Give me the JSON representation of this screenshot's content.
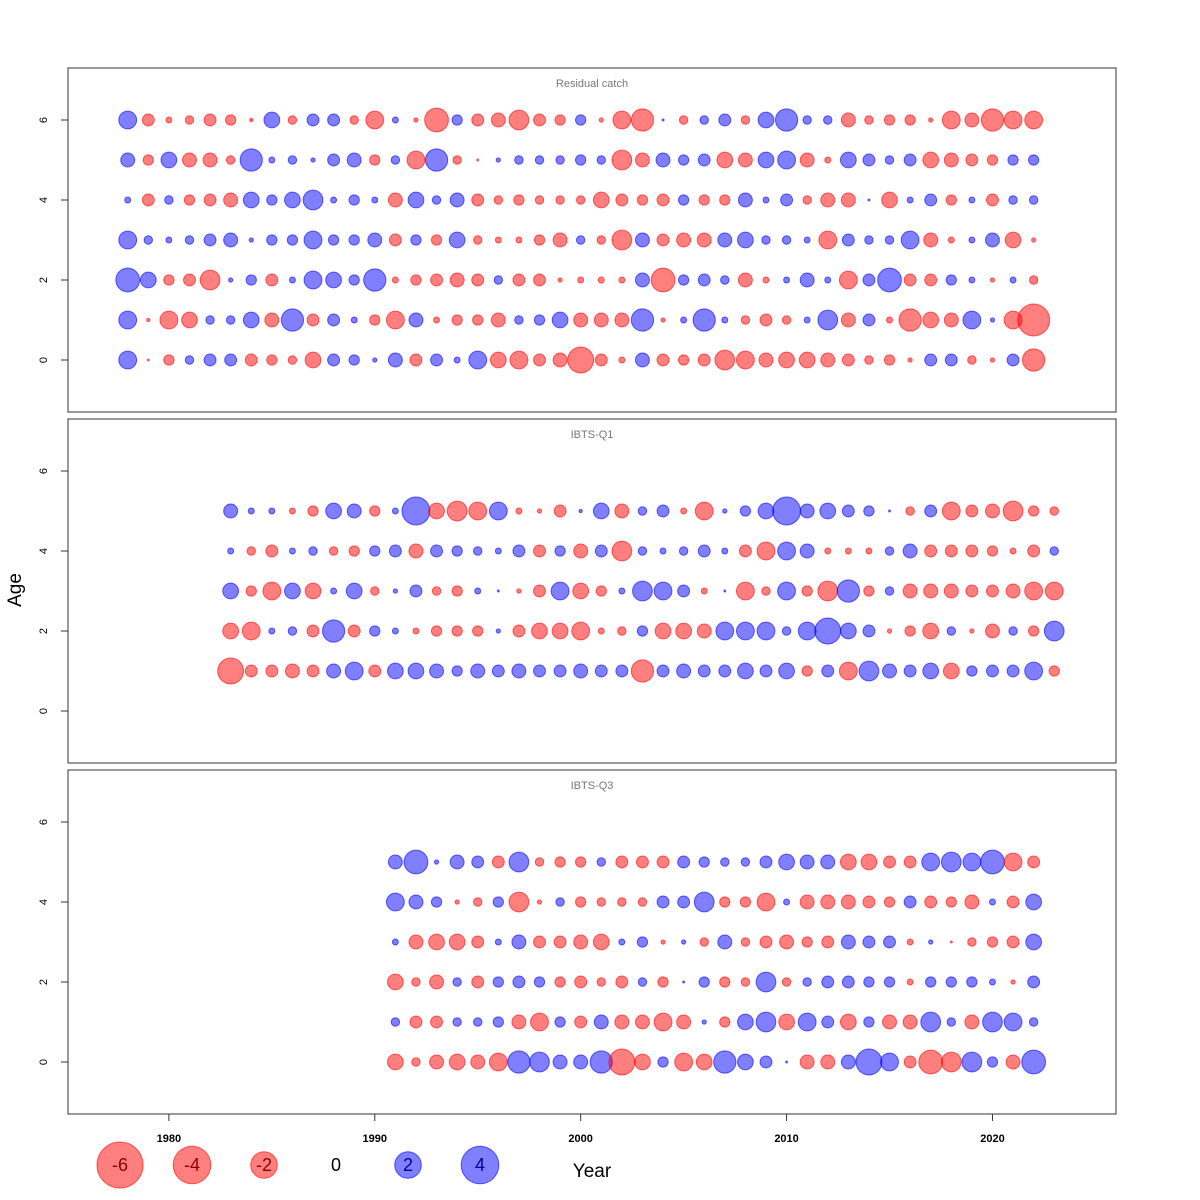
{
  "chart_data": {
    "type": "bubble",
    "xlabel": "Year",
    "ylabel": "Age",
    "xlim": [
      1975.1,
      2026
    ],
    "xticks": [
      1980,
      1990,
      2000,
      2010,
      2020
    ],
    "ylim": [
      -1.3,
      7.3
    ],
    "yticks": [
      0,
      2,
      4,
      6
    ],
    "colors": {
      "positive": "#0000ff",
      "negative": "#ff0000"
    },
    "opacity": 0.5,
    "legend": [
      -6,
      -4,
      -2,
      0,
      2,
      4
    ],
    "panels": [
      {
        "title": "Residual catch",
        "x": [
          1978,
          1979,
          1980,
          1981,
          1982,
          1983,
          1984,
          1985,
          1986,
          1987,
          1988,
          1989,
          1990,
          1991,
          1992,
          1993,
          1994,
          1995,
          1996,
          1997,
          1998,
          1999,
          2000,
          2001,
          2002,
          2003,
          2004,
          2005,
          2006,
          2007,
          2008,
          2009,
          2010,
          2011,
          2012,
          2013,
          2014,
          2015,
          2016,
          2017,
          2018,
          2019,
          2020,
          2021,
          2022
        ],
        "ages": [
          6,
          5,
          4,
          3,
          2,
          1,
          0
        ],
        "values": [
          [
            0.9,
            -0.4,
            -0.1,
            -0.2,
            -0.4,
            -0.3,
            -0.03,
            0.7,
            -0.2,
            0.4,
            0.4,
            -0.2,
            -0.9,
            0.1,
            -0.05,
            -1.6,
            0.3,
            -0.4,
            -0.55,
            -1.1,
            -0.4,
            -0.3,
            0.3,
            -0.05,
            -0.9,
            -1.4,
            0.01,
            -0.2,
            0.2,
            0.4,
            -0.2,
            0.7,
            1.4,
            0.2,
            0.2,
            -0.55,
            -0.2,
            -0.3,
            -0.3,
            -0.05,
            -0.9,
            -0.55,
            -1.4,
            -0.9,
            -0.9
          ],
          [
            0.55,
            -0.3,
            0.7,
            -0.55,
            -0.55,
            -0.2,
            1.4,
            0.1,
            0.2,
            0.05,
            0.4,
            0.55,
            -0.3,
            0.2,
            -0.9,
            1.4,
            -0.2,
            -0.01,
            0.05,
            0.2,
            0.2,
            0.2,
            0.3,
            0.2,
            -1.1,
            -0.55,
            0.55,
            0.3,
            0.4,
            -0.7,
            -0.55,
            0.7,
            0.9,
            -0.55,
            -0.1,
            0.7,
            0.4,
            0.2,
            0.4,
            -0.7,
            -0.55,
            -0.4,
            -0.3,
            0.3,
            0.3
          ],
          [
            0.1,
            -0.4,
            0.2,
            -0.3,
            -0.4,
            -0.55,
            0.7,
            0.3,
            0.7,
            1.1,
            0.1,
            0.3,
            0.1,
            -0.55,
            0.7,
            0.2,
            0.55,
            -0.4,
            -0.2,
            -0.3,
            -0.2,
            -0.2,
            -0.2,
            -0.7,
            -0.4,
            -0.3,
            -0.4,
            0.3,
            -0.3,
            -0.3,
            0.55,
            0.1,
            0.4,
            -0.2,
            -0.55,
            -0.55,
            0.01,
            -0.7,
            0.1,
            0.4,
            -0.3,
            0.1,
            -0.4,
            0.2,
            0.2
          ],
          [
            0.9,
            0.2,
            0.1,
            0.2,
            0.4,
            0.55,
            0.05,
            0.3,
            0.3,
            0.9,
            0.3,
            0.3,
            0.55,
            -0.4,
            0.3,
            -0.3,
            0.7,
            -0.2,
            -0.1,
            -0.1,
            -0.3,
            -0.55,
            0.2,
            -0.2,
            -1.1,
            0.55,
            -0.4,
            -0.55,
            -0.55,
            0.55,
            0.7,
            0.2,
            0.2,
            0.1,
            -0.9,
            0.4,
            0.2,
            0.2,
            0.9,
            -0.55,
            -0.1,
            0.1,
            0.55,
            -0.7,
            -0.05
          ],
          [
            1.6,
            0.7,
            -0.3,
            -0.4,
            -1.1,
            0.05,
            0.3,
            -0.4,
            0.1,
            0.9,
            0.7,
            0.3,
            1.4,
            -0.1,
            -0.3,
            -0.4,
            -0.55,
            -0.4,
            0.2,
            -0.4,
            -0.4,
            -0.05,
            -0.1,
            -0.1,
            -0.1,
            0.55,
            -1.6,
            0.3,
            0.4,
            0.2,
            -0.55,
            -0.1,
            0.1,
            0.55,
            0.1,
            -0.9,
            0.4,
            1.6,
            -0.4,
            -0.4,
            0.3,
            0.1,
            -0.05,
            0.1,
            -0.2
          ],
          [
            0.9,
            -0.03,
            -0.9,
            -0.7,
            0.2,
            0.2,
            0.7,
            -0.55,
            1.4,
            -0.4,
            0.4,
            0.1,
            -0.3,
            -0.9,
            0.55,
            -0.1,
            -0.3,
            -0.3,
            -0.55,
            0.2,
            0.3,
            0.7,
            -0.55,
            -0.55,
            -0.55,
            1.4,
            -0.05,
            0.1,
            1.4,
            0.1,
            -0.2,
            -0.4,
            -0.2,
            0.1,
            1.1,
            -0.55,
            0.4,
            -0.1,
            -1.4,
            -0.7,
            -0.55,
            0.9,
            0.05,
            -0.9,
            -2.9
          ],
          [
            0.9,
            -0.01,
            -0.3,
            0.2,
            0.4,
            0.4,
            -0.4,
            -0.3,
            -0.2,
            -0.7,
            0.4,
            0.3,
            0.05,
            0.55,
            -0.4,
            0.4,
            0.1,
            0.9,
            -0.7,
            -0.9,
            -0.4,
            -0.55,
            -1.9,
            -0.4,
            -0.1,
            0.55,
            -0.4,
            -0.3,
            -0.4,
            -1.1,
            -0.9,
            -0.55,
            -0.7,
            -0.7,
            -0.55,
            -0.4,
            -0.2,
            -0.3,
            -0.05,
            0.4,
            0.4,
            -0.2,
            -0.05,
            0.4,
            -1.4
          ]
        ]
      },
      {
        "title": "IBTS-Q1",
        "x": [
          1983,
          1984,
          1985,
          1986,
          1987,
          1988,
          1989,
          1990,
          1991,
          1992,
          1993,
          1994,
          1995,
          1996,
          1997,
          1998,
          1999,
          2000,
          2001,
          2002,
          2003,
          2004,
          2005,
          2006,
          2007,
          2008,
          2009,
          2010,
          2011,
          2012,
          2013,
          2014,
          2015,
          2016,
          2017,
          2018,
          2019,
          2020,
          2021,
          2022,
          2023
        ],
        "ages": [
          5,
          4,
          3,
          2,
          1
        ],
        "values": [
          [
            0.55,
            0.1,
            0.1,
            -0.1,
            -0.3,
            0.7,
            0.55,
            -0.3,
            0.1,
            2.2,
            -0.7,
            -1.1,
            -0.9,
            0.9,
            -0.1,
            -0.05,
            -0.4,
            0.03,
            0.7,
            -0.55,
            0.2,
            0.4,
            -0.1,
            -0.9,
            0.05,
            0.3,
            0.7,
            2.2,
            0.55,
            0.7,
            0.4,
            0.3,
            0.01,
            -0.2,
            0.4,
            -0.9,
            -0.4,
            -0.55,
            -1.1,
            -0.3,
            -0.2
          ],
          [
            0.1,
            -0.2,
            -0.4,
            0.1,
            0.2,
            -0.2,
            -0.3,
            0.3,
            0.4,
            -0.55,
            0.4,
            0.3,
            0.2,
            0.1,
            0.4,
            -0.4,
            0.3,
            -0.55,
            0.4,
            -1.1,
            0.2,
            0.1,
            0.2,
            0.4,
            0.1,
            -0.4,
            -0.9,
            0.9,
            0.55,
            -0.1,
            -0.1,
            -0.1,
            0.2,
            0.55,
            -0.4,
            -0.4,
            -0.4,
            -0.3,
            -0.1,
            -0.4,
            0.2
          ],
          [
            0.7,
            -0.3,
            -0.9,
            0.7,
            -0.7,
            0.1,
            0.7,
            -0.2,
            0.05,
            0.4,
            -0.2,
            -0.3,
            0.1,
            0.01,
            -0.05,
            -0.4,
            0.9,
            -0.7,
            -0.3,
            0.1,
            1.1,
            0.9,
            0.4,
            -0.1,
            0.01,
            -0.9,
            -0.2,
            0.9,
            -0.3,
            -1.1,
            1.4,
            -0.3,
            0.2,
            -0.55,
            -0.55,
            -0.55,
            -0.4,
            -0.4,
            -0.55,
            -0.9,
            -0.9
          ],
          [
            -0.7,
            -0.9,
            0.1,
            0.2,
            -0.4,
            1.4,
            -0.4,
            0.3,
            0.1,
            -0.1,
            -0.3,
            -0.3,
            -0.3,
            0.05,
            -0.4,
            -0.7,
            -0.7,
            -0.9,
            -0.1,
            -0.2,
            0.3,
            -0.7,
            -0.7,
            -0.55,
            0.9,
            0.9,
            0.9,
            0.2,
            0.9,
            1.9,
            0.7,
            0.4,
            -0.05,
            -0.3,
            -0.7,
            0.2,
            -0.05,
            -0.55,
            0.2,
            -0.3,
            1.1
          ],
          [
            -1.9,
            -0.4,
            -0.4,
            -0.55,
            -0.4,
            0.55,
            0.9,
            -0.4,
            0.7,
            0.7,
            0.55,
            0.3,
            0.55,
            0.4,
            0.55,
            0.4,
            0.4,
            0.55,
            0.4,
            0.4,
            -1.4,
            0.4,
            0.55,
            0.4,
            0.4,
            0.7,
            0.4,
            0.7,
            -0.3,
            0.4,
            -0.9,
            1.1,
            0.55,
            0.4,
            0.7,
            -0.7,
            0.3,
            0.4,
            0.4,
            0.9,
            -0.3
          ]
        ]
      },
      {
        "title": "IBTS-Q3",
        "x": [
          1991,
          1992,
          1993,
          1994,
          1995,
          1996,
          1997,
          1998,
          1999,
          2000,
          2001,
          2002,
          2003,
          2004,
          2005,
          2006,
          2007,
          2008,
          2009,
          2010,
          2011,
          2012,
          2013,
          2014,
          2015,
          2016,
          2017,
          2018,
          2019,
          2020,
          2021,
          2022
        ],
        "ages": [
          5,
          4,
          3,
          2,
          1,
          0
        ],
        "values": [
          [
            0.55,
            1.6,
            0.05,
            0.55,
            0.4,
            -0.4,
            1.1,
            -0.2,
            -0.3,
            -0.3,
            0.2,
            -0.4,
            -0.4,
            -0.4,
            0.4,
            0.3,
            0.2,
            0.2,
            0.4,
            0.7,
            0.55,
            0.55,
            -0.7,
            -0.7,
            -0.4,
            -0.4,
            0.9,
            1.1,
            0.9,
            1.6,
            -0.9,
            -0.4
          ],
          [
            0.9,
            0.55,
            0.3,
            -0.05,
            -0.2,
            0.3,
            -1.1,
            -0.05,
            0.2,
            -0.3,
            -0.2,
            -0.2,
            -0.2,
            0.4,
            0.4,
            1.1,
            -0.3,
            -0.3,
            -0.9,
            0.1,
            -0.55,
            -0.55,
            -0.55,
            -0.4,
            -0.3,
            0.4,
            -0.4,
            -0.3,
            -0.55,
            0.1,
            -0.4,
            0.7
          ],
          [
            0.1,
            -0.55,
            -0.7,
            -0.7,
            -0.4,
            0.1,
            0.55,
            -0.4,
            -0.4,
            -0.55,
            -0.7,
            0.1,
            0.3,
            -0.05,
            0.05,
            -0.2,
            0.55,
            -0.2,
            -0.4,
            -0.55,
            -0.3,
            -0.4,
            0.55,
            0.4,
            0.4,
            -0.1,
            0.05,
            -0.01,
            -0.2,
            -0.3,
            -0.4,
            0.7
          ],
          [
            -0.7,
            -0.2,
            -0.55,
            0.2,
            -0.4,
            0.3,
            0.4,
            0.3,
            -0.3,
            -0.4,
            -0.2,
            -0.4,
            0.2,
            -0.3,
            0.01,
            0.3,
            -0.3,
            -0.2,
            1.1,
            -0.2,
            0.2,
            0.4,
            0.4,
            0.3,
            0.3,
            -0.1,
            0.3,
            0.3,
            0.3,
            0.1,
            -0.05,
            0.4
          ],
          [
            0.2,
            -0.4,
            -0.4,
            0.2,
            0.2,
            0.3,
            -0.55,
            -0.9,
            0.3,
            -0.4,
            0.55,
            -0.55,
            -0.55,
            -0.9,
            -0.55,
            0.05,
            -0.3,
            0.7,
            1.1,
            -0.7,
            0.9,
            0.4,
            -0.7,
            0.3,
            -0.55,
            -0.55,
            1.1,
            0.2,
            -0.55,
            1.1,
            0.9,
            0.2
          ],
          [
            -0.7,
            -0.2,
            -0.55,
            -0.7,
            -0.55,
            -0.9,
            1.4,
            1.1,
            0.55,
            0.55,
            1.4,
            -1.9,
            -0.7,
            0.3,
            -0.9,
            -0.7,
            1.4,
            0.7,
            0.4,
            0.01,
            -0.55,
            -0.55,
            0.55,
            1.9,
            0.9,
            -0.4,
            -1.6,
            -1.1,
            1.1,
            0.3,
            -0.55,
            1.6
          ]
        ]
      }
    ]
  }
}
